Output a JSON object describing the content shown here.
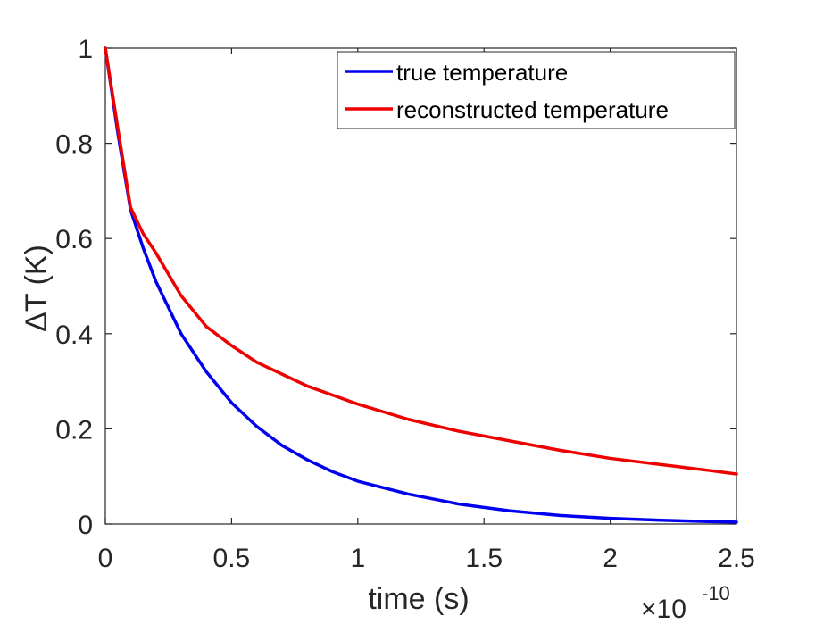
{
  "chart_data": {
    "type": "line",
    "title": "",
    "xlabel": "time (s)",
    "ylabel": "ΔT (K)",
    "x_exponent_label": "×10",
    "x_exponent_power": "-10",
    "xlim": [
      0,
      2.5
    ],
    "ylim": [
      0,
      1
    ],
    "xticks": [
      0,
      0.5,
      1,
      1.5,
      2,
      2.5
    ],
    "xtick_labels": [
      "0",
      "0.5",
      "1",
      "1.5",
      "2",
      "2.5"
    ],
    "yticks": [
      0,
      0.2,
      0.4,
      0.6,
      0.8,
      1
    ],
    "ytick_labels": [
      "0",
      "0.2",
      "0.4",
      "0.6",
      "0.8",
      "1"
    ],
    "grid": false,
    "legend_position": "top-right",
    "series": [
      {
        "name": "true temperature",
        "color": "#0000ee",
        "x": [
          0,
          0.05,
          0.1,
          0.15,
          0.2,
          0.3,
          0.4,
          0.5,
          0.6,
          0.7,
          0.8,
          0.9,
          1.0,
          1.2,
          1.4,
          1.6,
          1.8,
          2.0,
          2.2,
          2.4,
          2.5
        ],
        "y": [
          1.0,
          0.82,
          0.66,
          0.58,
          0.51,
          0.4,
          0.32,
          0.255,
          0.205,
          0.165,
          0.135,
          0.11,
          0.09,
          0.063,
          0.042,
          0.028,
          0.018,
          0.012,
          0.008,
          0.005,
          0.004
        ]
      },
      {
        "name": "reconstructed temperature",
        "color": "#ee0000",
        "x": [
          0,
          0.05,
          0.1,
          0.15,
          0.2,
          0.3,
          0.4,
          0.5,
          0.6,
          0.7,
          0.8,
          1.0,
          1.2,
          1.4,
          1.6,
          1.8,
          2.0,
          2.2,
          2.4,
          2.5
        ],
        "y": [
          1.0,
          0.83,
          0.665,
          0.61,
          0.57,
          0.48,
          0.415,
          0.375,
          0.34,
          0.315,
          0.29,
          0.252,
          0.22,
          0.195,
          0.175,
          0.155,
          0.138,
          0.125,
          0.112,
          0.105
        ]
      }
    ]
  }
}
